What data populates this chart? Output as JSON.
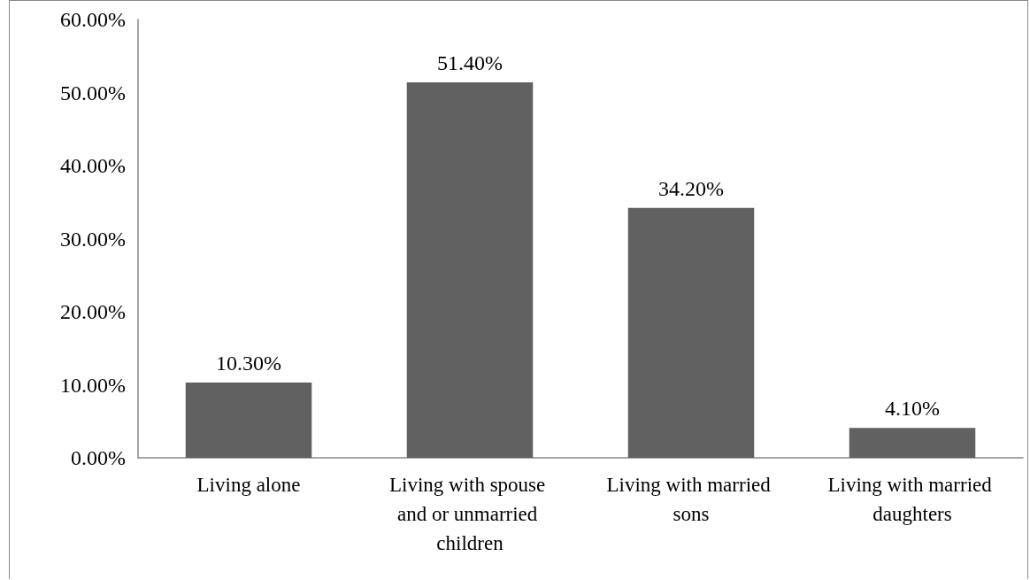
{
  "chart_data": {
    "type": "bar",
    "categories": [
      "Living alone",
      "Living with spouse and or unmarried children",
      "Living with married sons",
      "Living with married daughters"
    ],
    "values": [
      10.3,
      51.4,
      34.2,
      4.1
    ],
    "color": "#616161",
    "value_labels": [
      "10.30%",
      "51.40%",
      "34.20%",
      "4.10%"
    ],
    "ylim": [
      0,
      60
    ],
    "yticks": [
      {
        "value": 0,
        "label": "0.00%"
      },
      {
        "value": 10,
        "label": "10.00%"
      },
      {
        "value": 20,
        "label": "20.00%"
      },
      {
        "value": 30,
        "label": "30.00%"
      },
      {
        "value": 40,
        "label": "40.00%"
      },
      {
        "value": 50,
        "label": "50.00%"
      },
      {
        "value": 60,
        "label": "60.00%"
      }
    ],
    "grid": false
  }
}
